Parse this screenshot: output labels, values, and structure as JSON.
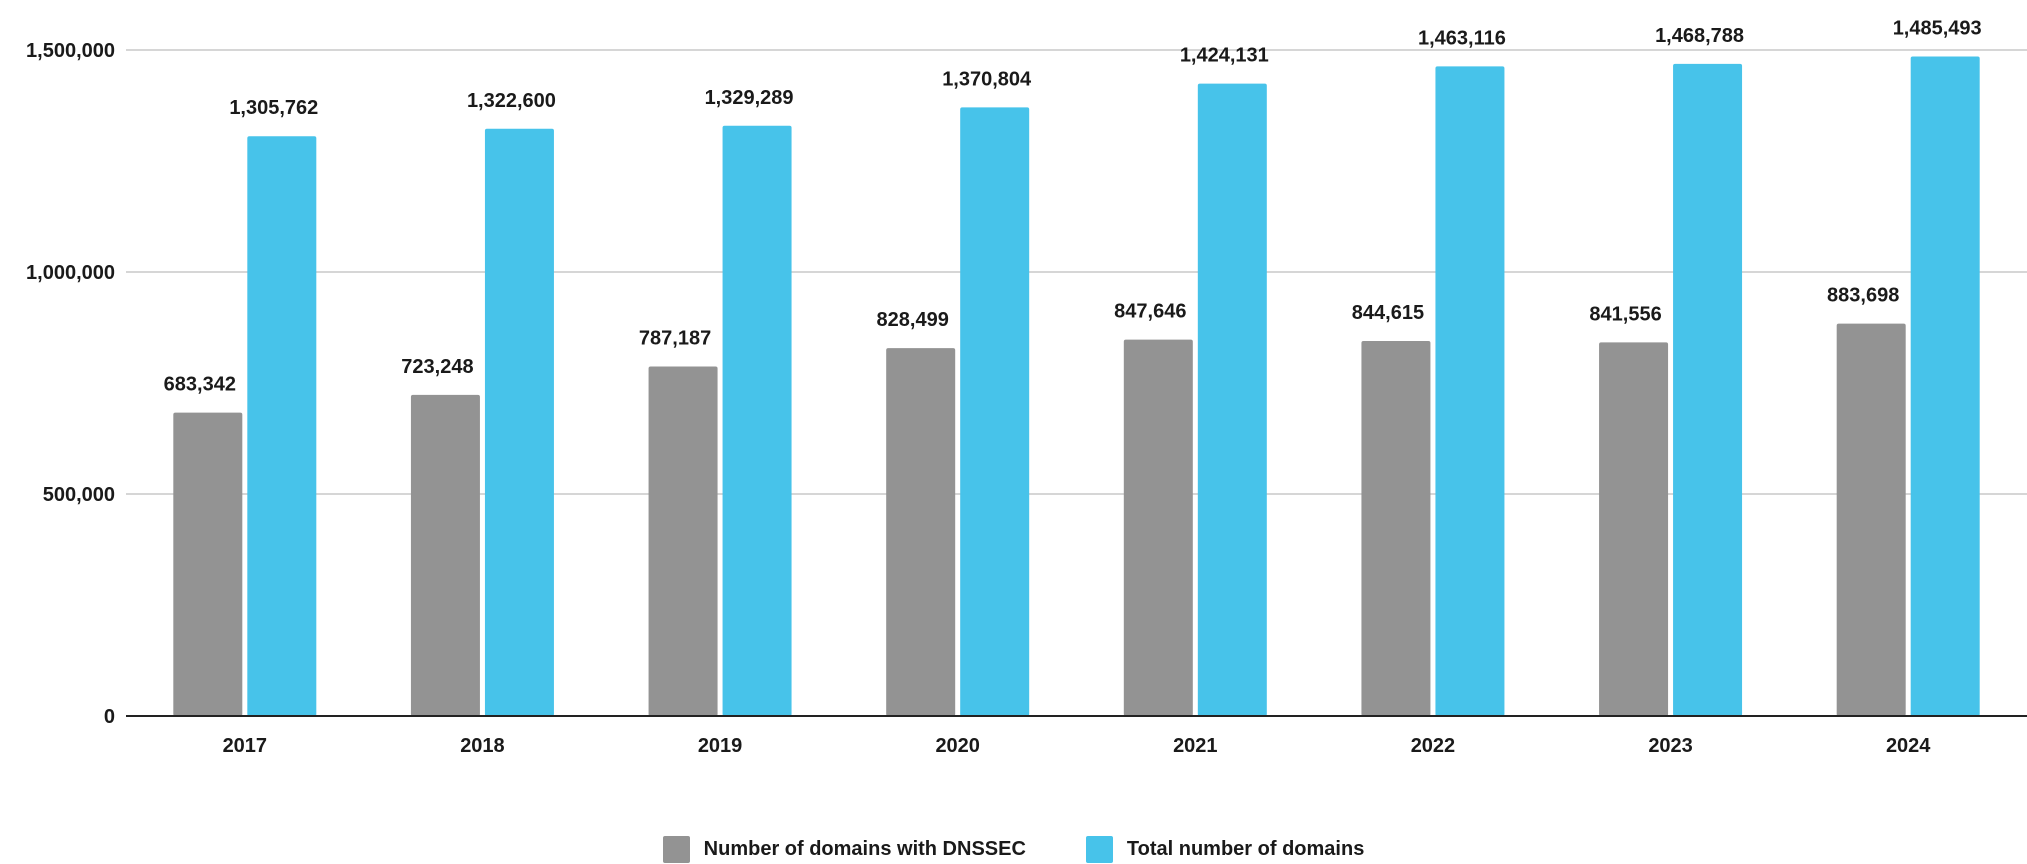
{
  "chart_data": {
    "type": "bar",
    "categories": [
      "2017",
      "2018",
      "2019",
      "2020",
      "2021",
      "2022",
      "2023",
      "2024"
    ],
    "series": [
      {
        "name": "Number of domains with DNSSEC",
        "color": "#939393",
        "values": [
          683342,
          723248,
          787187,
          828499,
          847646,
          844615,
          841556,
          883698
        ],
        "labels": [
          "683,342",
          "723,248",
          "787,187",
          "828,499",
          "847,646",
          "844,615",
          "841,556",
          "883,698"
        ]
      },
      {
        "name": "Total number of domains",
        "color": "#47c3ea",
        "values": [
          1305762,
          1322600,
          1329289,
          1370804,
          1424131,
          1463116,
          1468788,
          1485493
        ],
        "labels": [
          "1,305,762",
          "1,322,600",
          "1,329,289",
          "1,370,804",
          "1,424,131",
          "1,463,116",
          "1,468,788",
          "1,485,493"
        ]
      }
    ],
    "yticks": [
      0,
      500000,
      1000000,
      1500000
    ],
    "ytick_labels": [
      "0",
      "500,000",
      "1,000,000",
      "1,500,000"
    ],
    "ylim": [
      0,
      1500000
    ],
    "grid": true,
    "legend_position": "bottom"
  }
}
